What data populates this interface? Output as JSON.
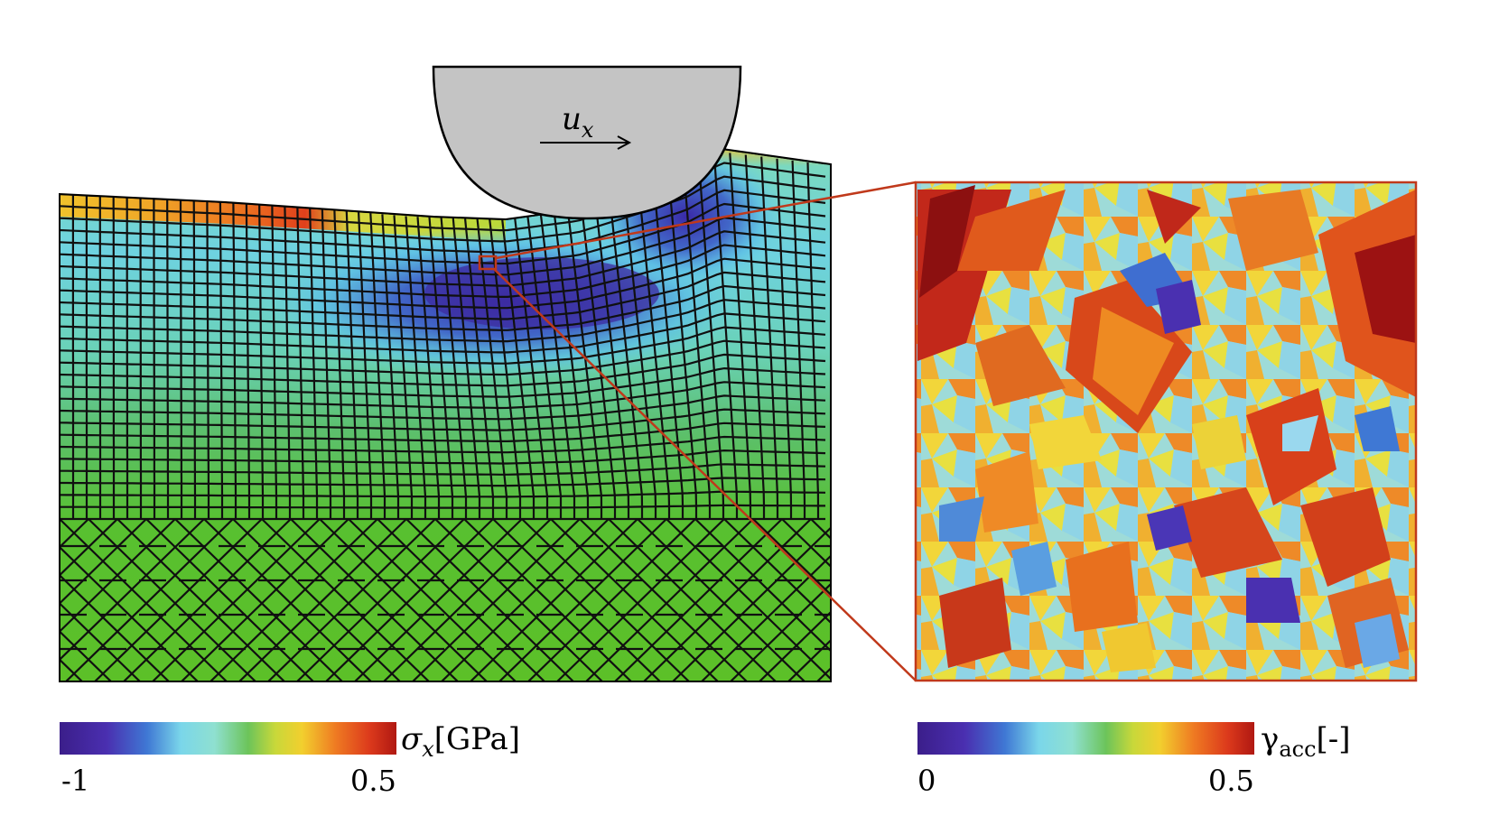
{
  "indenter": {
    "label_main": "u",
    "label_sub": "x"
  },
  "colorbar_stress": {
    "symbol": "σ",
    "subscript": "x",
    "unit": "[GPa]",
    "min_label": "-1",
    "max_label": "0.5"
  },
  "colorbar_slip": {
    "symbol": "γ",
    "subscript": "acc",
    "unit": "[-]",
    "min_label": "0",
    "max_label": "0.5"
  },
  "colors": {
    "zoom_frame": "#c0391b",
    "indenter_fill": "#c4c4c4",
    "colormap": [
      "#3b1e8a",
      "#4a2fb0",
      "#3f6fd0",
      "#54b8e8",
      "#8ee0e8",
      "#7fd4a8",
      "#6cc45a",
      "#b8d83a",
      "#f0d52e",
      "#f5a030",
      "#ef6a1e",
      "#d8321c",
      "#a01010"
    ]
  }
}
